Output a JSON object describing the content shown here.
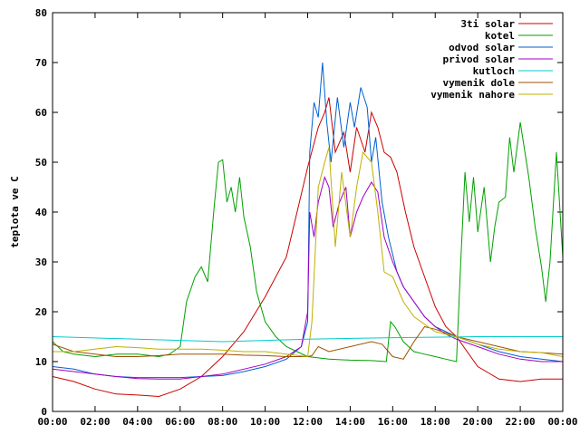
{
  "chart_data": {
    "type": "line",
    "title": "",
    "xlabel": "",
    "ylabel": "teplota ve C",
    "xlim": [
      0,
      24
    ],
    "ylim": [
      0,
      80
    ],
    "grid": false,
    "legend_position": "top-right",
    "x_ticks": [
      "00:00",
      "02:00",
      "04:00",
      "06:00",
      "08:00",
      "10:00",
      "12:00",
      "14:00",
      "16:00",
      "18:00",
      "20:00",
      "22:00",
      "00:00"
    ],
    "y_ticks": [
      "0",
      "10",
      "20",
      "30",
      "40",
      "50",
      "60",
      "70",
      "80"
    ],
    "series": [
      {
        "name": "3ti solar",
        "color": "#cc0000",
        "x": [
          0,
          1,
          2,
          3,
          4,
          5,
          6,
          7,
          8,
          9,
          10,
          11,
          11.5,
          12,
          12.5,
          12.8,
          13,
          13.3,
          13.7,
          14,
          14.3,
          14.7,
          15,
          15.3,
          15.6,
          15.9,
          16.2,
          16.6,
          17,
          17.5,
          18,
          18.5,
          19,
          20,
          21,
          22,
          23,
          24
        ],
        "y": [
          7,
          6,
          4.5,
          3.5,
          3.3,
          3,
          4.5,
          7,
          11,
          16,
          23,
          31,
          40,
          49,
          57,
          60,
          63,
          52,
          56,
          48,
          57,
          52,
          60,
          57,
          52,
          51,
          48,
          40,
          33,
          27,
          21,
          17,
          15,
          9,
          6.5,
          6,
          6.5,
          6.5
        ]
      },
      {
        "name": "kotel",
        "color": "#00a000",
        "x": [
          0,
          0.5,
          1,
          2,
          3,
          4,
          5,
          5.5,
          6,
          6.3,
          6.7,
          7,
          7.3,
          7.6,
          7.8,
          8,
          8.2,
          8.4,
          8.6,
          8.8,
          9,
          9.3,
          9.6,
          10,
          10.5,
          11,
          11.5,
          12,
          13,
          14,
          15,
          15.7,
          15.9,
          16.1,
          16.5,
          17,
          17.5,
          18,
          18.5,
          19,
          19.2,
          19.4,
          19.6,
          19.8,
          20,
          20.3,
          20.6,
          20.8,
          21,
          21.3,
          21.5,
          21.7,
          22,
          22.4,
          22.7,
          23,
          23.2,
          23.4,
          23.7,
          24
        ],
        "y": [
          14,
          12,
          11.5,
          11,
          11.5,
          11.5,
          11,
          11.5,
          13,
          22,
          27,
          29,
          26,
          41,
          50,
          50.5,
          42,
          45,
          40,
          47,
          39,
          33,
          24,
          18,
          15,
          13,
          12,
          11,
          10.5,
          10.3,
          10.2,
          10,
          18,
          17,
          14,
          12,
          11.5,
          11,
          10.5,
          10,
          30,
          48,
          38,
          47,
          36,
          45,
          30,
          37,
          42,
          43,
          55,
          48,
          58,
          47,
          37,
          29,
          22,
          30,
          52,
          31
        ]
      },
      {
        "name": "odvod solar",
        "color": "#0060d0",
        "x": [
          0,
          1,
          2,
          3,
          4,
          5,
          6,
          7,
          8,
          9,
          10,
          11,
          11.7,
          12,
          12.1,
          12.3,
          12.5,
          12.7,
          12.9,
          13.1,
          13.4,
          13.7,
          14,
          14.2,
          14.5,
          14.8,
          15,
          15.2,
          15.5,
          15.8,
          16.2,
          16.5,
          17,
          17.5,
          18,
          18.5,
          19,
          20,
          21,
          22,
          23,
          24
        ],
        "y": [
          9,
          8.5,
          7.5,
          7,
          6.8,
          6.8,
          6.8,
          7,
          7.2,
          8,
          9,
          10.5,
          13,
          18,
          52,
          62,
          59,
          70,
          58,
          50,
          63,
          53,
          62,
          57,
          65,
          61,
          50,
          55,
          42,
          35,
          28,
          25,
          22,
          19,
          17,
          16,
          15,
          13.5,
          12,
          11,
          10.5,
          10
        ]
      },
      {
        "name": "privod solar",
        "color": "#a000c0",
        "x": [
          0,
          1,
          2,
          3,
          4,
          5,
          6,
          7,
          8,
          9,
          10,
          11,
          11.7,
          12,
          12.1,
          12.3,
          12.5,
          12.8,
          13,
          13.2,
          13.5,
          13.8,
          14,
          14.3,
          14.6,
          15,
          15.3,
          15.6,
          16,
          16.5,
          17,
          17.5,
          18,
          18.5,
          19,
          20,
          21,
          22,
          23,
          24
        ],
        "y": [
          8.5,
          8,
          7.5,
          7,
          6.6,
          6.5,
          6.5,
          7,
          7.5,
          8.5,
          9.5,
          11,
          13,
          20,
          40,
          35,
          42,
          47,
          45,
          37,
          42,
          45,
          35,
          40,
          43,
          46,
          44,
          35,
          30,
          25,
          22,
          19,
          17,
          15.5,
          14.5,
          13,
          11.5,
          10.5,
          10,
          10
        ]
      },
      {
        "name": "kutloch",
        "color": "#00cccc",
        "x": [
          0,
          4,
          8,
          12,
          16,
          20,
          24
        ],
        "y": [
          15,
          14.5,
          14,
          14.5,
          14.8,
          15,
          15
        ]
      },
      {
        "name": "vymenik dole",
        "color": "#a05000",
        "x": [
          0,
          1,
          2,
          3,
          4,
          5,
          6,
          7,
          8,
          9,
          10,
          11,
          12,
          12.2,
          12.5,
          13,
          14,
          15,
          15.5,
          15.8,
          16,
          16.5,
          17,
          17.5,
          18,
          19,
          20,
          21,
          22,
          23,
          24
        ],
        "y": [
          13.5,
          12,
          11.5,
          11,
          11,
          11.2,
          11.5,
          11.5,
          11.5,
          11.3,
          11.2,
          11,
          11,
          11.2,
          13,
          12,
          13,
          14,
          13.5,
          12,
          11,
          10.5,
          14,
          17,
          16.5,
          15,
          14,
          13,
          12,
          11.8,
          11.5
        ]
      },
      {
        "name": "vymenik nahore",
        "color": "#c0b000",
        "x": [
          0,
          1,
          2,
          3,
          4,
          5,
          6,
          7,
          8,
          9,
          10,
          11,
          12,
          12.2,
          12.5,
          12.8,
          13,
          13.3,
          13.6,
          14,
          14.3,
          14.6,
          15,
          15.3,
          15.6,
          16,
          16.5,
          17,
          18,
          19,
          20,
          21,
          22,
          23,
          24
        ],
        "y": [
          12,
          12,
          12.5,
          13,
          12.8,
          12.5,
          12.5,
          12.5,
          12.3,
          12,
          12,
          11.5,
          11,
          18,
          45,
          50,
          53,
          33,
          48,
          35,
          45,
          52,
          50,
          40,
          28,
          27,
          22,
          19,
          16,
          15,
          13.5,
          12.5,
          12,
          11.8,
          11
        ]
      }
    ]
  }
}
